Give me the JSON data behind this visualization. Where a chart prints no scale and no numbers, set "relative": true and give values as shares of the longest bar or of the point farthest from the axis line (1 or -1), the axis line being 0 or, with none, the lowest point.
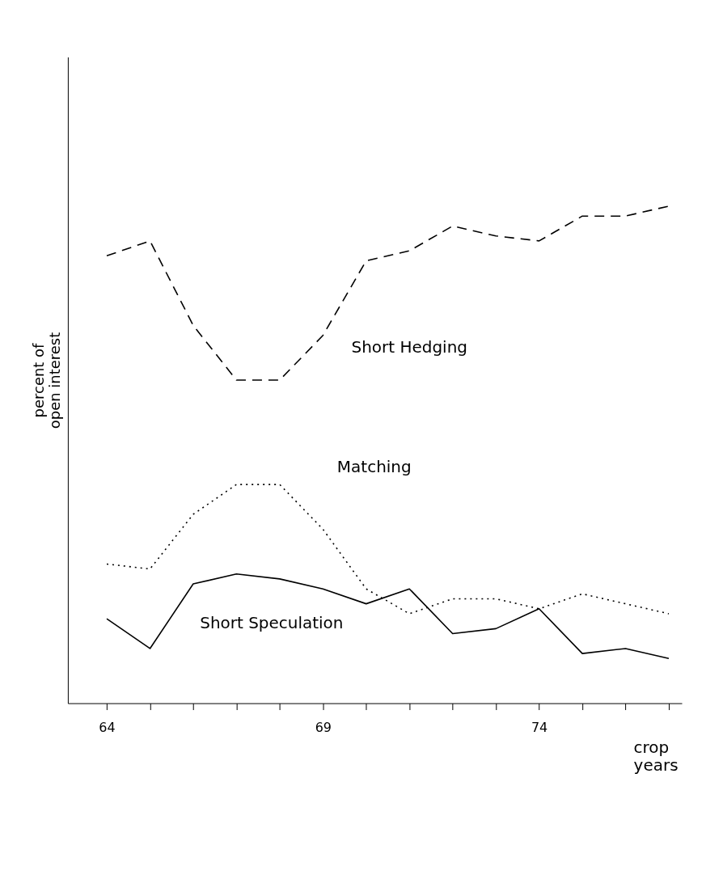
{
  "chart_data": {
    "type": "line",
    "relative": true,
    "ylabel": "percent of\nopen interest",
    "xlabel": "crop\nyears",
    "x": [
      64,
      65,
      66,
      67,
      68,
      69,
      70,
      71,
      72,
      73,
      74,
      75,
      76,
      77
    ],
    "xlim": [
      63.1,
      77.3
    ],
    "xticks": [
      64,
      {
        "value": 65,
        "label": null
      },
      {
        "value": 66,
        "label": null
      },
      {
        "value": 67,
        "label": null
      },
      {
        "value": 68,
        "label": null
      },
      69,
      {
        "value": 70,
        "label": null
      },
      {
        "value": 71,
        "label": null
      },
      {
        "value": 72,
        "label": null
      },
      {
        "value": 73,
        "label": null
      },
      74,
      {
        "value": 75,
        "label": null
      },
      {
        "value": 76,
        "label": null
      },
      {
        "value": 77,
        "label": null
      }
    ],
    "tick_labels": "x",
    "grid": false,
    "marker": "none",
    "series": [
      {
        "name": "Short Hedging",
        "color": "#000000",
        "line_style": "dashed",
        "values": [
          0.9,
          0.93,
          0.76,
          0.65,
          0.65,
          0.74,
          0.89,
          0.91,
          0.96,
          0.94,
          0.93,
          0.98,
          0.98,
          1.0
        ]
      },
      {
        "name": "Matching",
        "color": "#000000",
        "line_style": "dotted",
        "values": [
          0.28,
          0.27,
          0.38,
          0.44,
          0.44,
          0.35,
          0.23,
          0.18,
          0.21,
          0.21,
          0.19,
          0.22,
          0.2,
          0.18
        ]
      },
      {
        "name": "Short Speculation",
        "color": "#000000",
        "line_style": "solid",
        "values": [
          0.17,
          0.11,
          0.24,
          0.26,
          0.25,
          0.23,
          0.2,
          0.23,
          0.14,
          0.15,
          0.19,
          0.1,
          0.11,
          0.09
        ]
      }
    ]
  }
}
